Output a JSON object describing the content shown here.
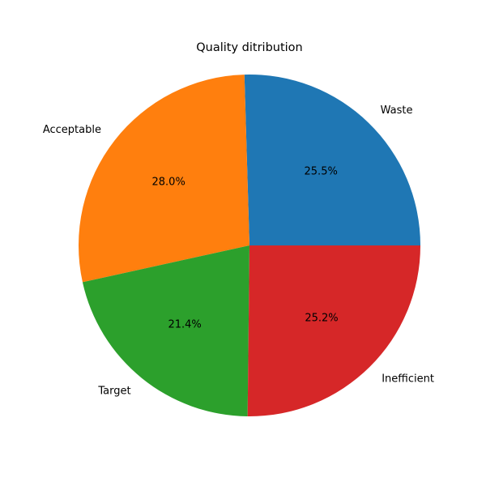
{
  "chart_data": {
    "type": "pie",
    "title": "Quality ditribution",
    "start_angle_deg": 0,
    "direction": "counterclockwise",
    "slices": [
      {
        "label": "Waste",
        "value": 25.5,
        "pct_label": "25.5%",
        "color": "#1f77b4"
      },
      {
        "label": "Acceptable",
        "value": 28.0,
        "pct_label": "28.0%",
        "color": "#ff7f0e"
      },
      {
        "label": "Target",
        "value": 21.4,
        "pct_label": "21.4%",
        "color": "#2ca02c"
      },
      {
        "label": "Inefficient",
        "value": 25.2,
        "pct_label": "25.2%",
        "color": "#d62728"
      }
    ]
  }
}
